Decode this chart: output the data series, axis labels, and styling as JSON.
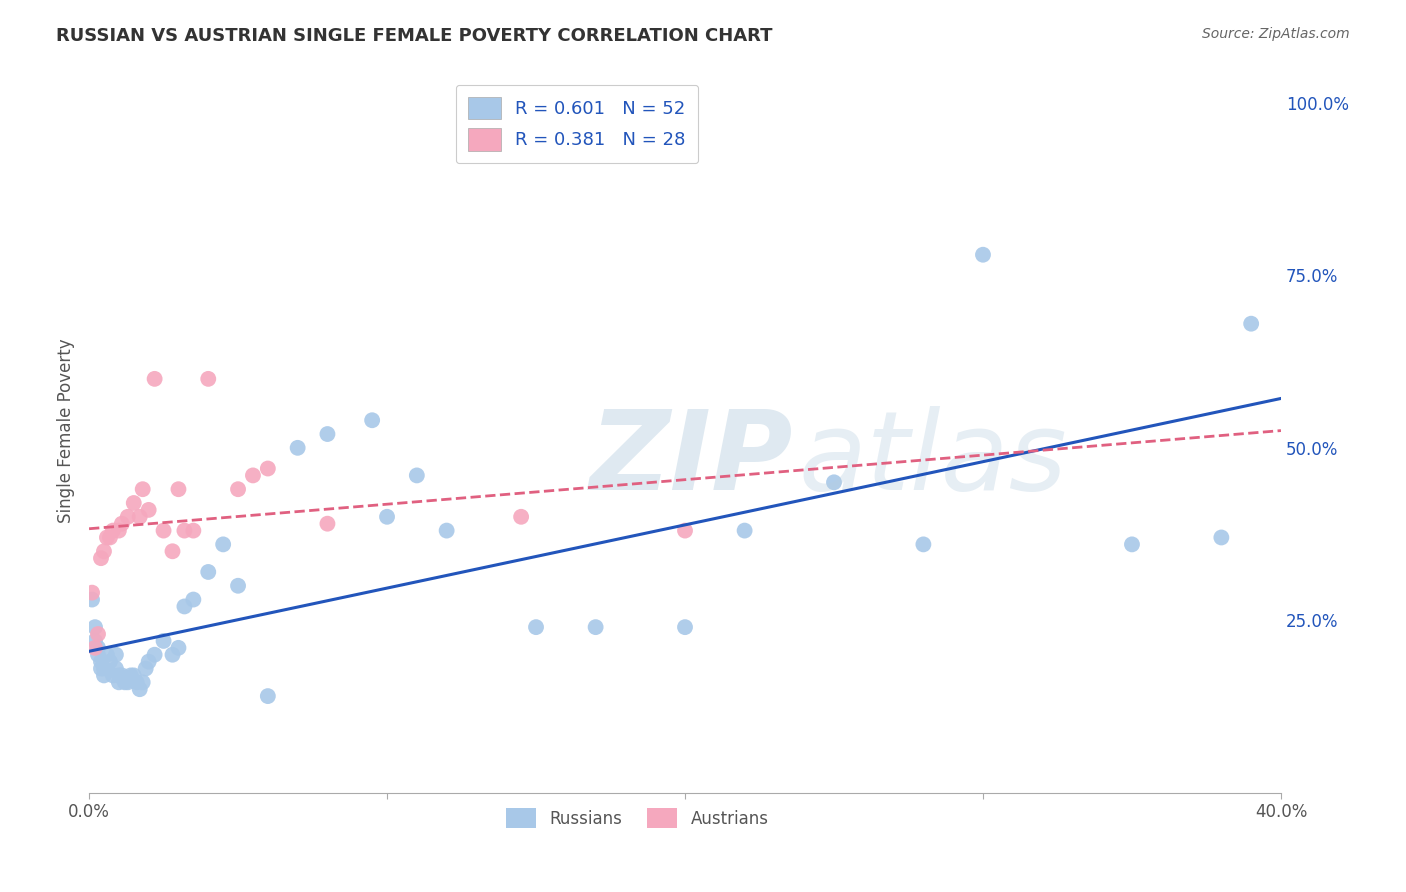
{
  "title": "RUSSIAN VS AUSTRIAN SINGLE FEMALE POVERTY CORRELATION CHART",
  "source": "Source: ZipAtlas.com",
  "ylabel": "Single Female Poverty",
  "xlim": [
    0.0,
    0.4
  ],
  "ylim": [
    0.0,
    1.05
  ],
  "russian_R": 0.601,
  "russian_N": 52,
  "austrian_R": 0.381,
  "austrian_N": 28,
  "russian_color": "#a8c8e8",
  "austrian_color": "#f5a8be",
  "russian_line_color": "#2255bb",
  "austrian_line_color": "#e06080",
  "background_color": "#ffffff",
  "grid_color": "#dddddd",
  "russians_x": [
    0.001,
    0.002,
    0.002,
    0.003,
    0.003,
    0.004,
    0.004,
    0.005,
    0.005,
    0.006,
    0.007,
    0.008,
    0.009,
    0.009,
    0.01,
    0.01,
    0.011,
    0.012,
    0.013,
    0.014,
    0.015,
    0.016,
    0.017,
    0.018,
    0.019,
    0.02,
    0.022,
    0.025,
    0.028,
    0.03,
    0.032,
    0.035,
    0.04,
    0.045,
    0.05,
    0.06,
    0.07,
    0.08,
    0.095,
    0.1,
    0.11,
    0.12,
    0.15,
    0.17,
    0.2,
    0.22,
    0.25,
    0.28,
    0.3,
    0.35,
    0.38,
    0.39
  ],
  "russians_y": [
    0.28,
    0.22,
    0.24,
    0.21,
    0.2,
    0.19,
    0.18,
    0.17,
    0.18,
    0.2,
    0.19,
    0.17,
    0.18,
    0.2,
    0.16,
    0.17,
    0.17,
    0.16,
    0.16,
    0.17,
    0.17,
    0.16,
    0.15,
    0.16,
    0.18,
    0.19,
    0.2,
    0.22,
    0.2,
    0.21,
    0.27,
    0.28,
    0.32,
    0.36,
    0.3,
    0.14,
    0.5,
    0.52,
    0.54,
    0.4,
    0.46,
    0.38,
    0.24,
    0.24,
    0.24,
    0.38,
    0.45,
    0.36,
    0.78,
    0.36,
    0.37,
    0.68
  ],
  "austrians_x": [
    0.001,
    0.002,
    0.003,
    0.004,
    0.005,
    0.006,
    0.007,
    0.008,
    0.01,
    0.011,
    0.013,
    0.015,
    0.017,
    0.018,
    0.02,
    0.022,
    0.025,
    0.028,
    0.03,
    0.032,
    0.035,
    0.04,
    0.05,
    0.055,
    0.06,
    0.08,
    0.145,
    0.2
  ],
  "austrians_y": [
    0.29,
    0.21,
    0.23,
    0.34,
    0.35,
    0.37,
    0.37,
    0.38,
    0.38,
    0.39,
    0.4,
    0.42,
    0.4,
    0.44,
    0.41,
    0.6,
    0.38,
    0.35,
    0.44,
    0.38,
    0.38,
    0.6,
    0.44,
    0.46,
    0.47,
    0.39,
    0.4,
    0.38
  ]
}
